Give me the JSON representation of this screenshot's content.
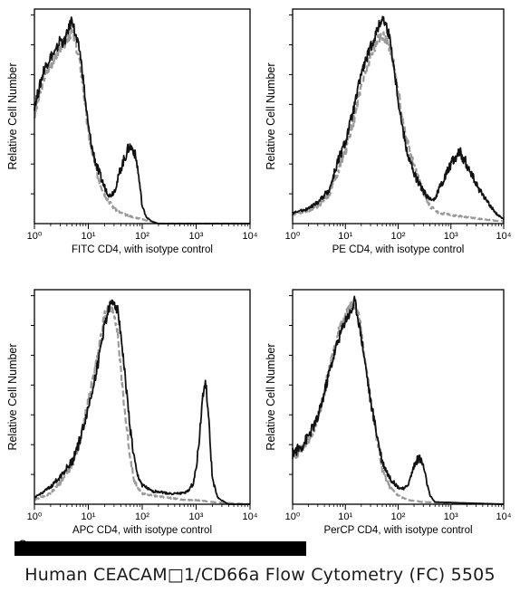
{
  "chart_data": [
    {
      "type": "histogram",
      "xlabel": "FITC  CD4,  with isotype control",
      "ylabel": "Relative Cell Number",
      "x_scale": "log",
      "xlim": [
        1,
        10000
      ],
      "x_ticks": [
        "10⁰",
        "10¹",
        "10²",
        "10³",
        "10⁴"
      ],
      "series": [
        {
          "style": "solid-black",
          "points": [
            [
              1.0,
              0.55
            ],
            [
              1.2,
              0.62
            ],
            [
              1.5,
              0.72
            ],
            [
              2,
              0.78
            ],
            [
              2.5,
              0.8
            ],
            [
              3,
              0.86
            ],
            [
              3.5,
              0.84
            ],
            [
              4,
              0.88
            ],
            [
              4.5,
              0.92
            ],
            [
              5,
              0.96
            ],
            [
              5.5,
              0.9
            ],
            [
              6,
              0.86
            ],
            [
              7,
              0.8
            ],
            [
              8,
              0.68
            ],
            [
              9,
              0.55
            ],
            [
              10,
              0.45
            ],
            [
              12,
              0.34
            ],
            [
              15,
              0.25
            ],
            [
              20,
              0.17
            ],
            [
              25,
              0.13
            ],
            [
              30,
              0.15
            ],
            [
              35,
              0.2
            ],
            [
              40,
              0.26
            ],
            [
              50,
              0.32
            ],
            [
              55,
              0.35
            ],
            [
              60,
              0.36
            ],
            [
              70,
              0.34
            ],
            [
              80,
              0.28
            ],
            [
              90,
              0.18
            ],
            [
              100,
              0.08
            ],
            [
              120,
              0.03
            ],
            [
              150,
              0.01
            ],
            [
              200,
              0.0
            ]
          ]
        },
        {
          "style": "dashed-gray",
          "points": [
            [
              1.0,
              0.5
            ],
            [
              1.2,
              0.58
            ],
            [
              1.5,
              0.68
            ],
            [
              2,
              0.74
            ],
            [
              2.5,
              0.78
            ],
            [
              3,
              0.82
            ],
            [
              3.5,
              0.83
            ],
            [
              4,
              0.86
            ],
            [
              4.5,
              0.88
            ],
            [
              5,
              0.9
            ],
            [
              5.5,
              0.86
            ],
            [
              6,
              0.82
            ],
            [
              7,
              0.74
            ],
            [
              8,
              0.64
            ],
            [
              9,
              0.52
            ],
            [
              10,
              0.42
            ],
            [
              12,
              0.32
            ],
            [
              15,
              0.22
            ],
            [
              20,
              0.14
            ],
            [
              25,
              0.1
            ],
            [
              30,
              0.07
            ],
            [
              40,
              0.05
            ],
            [
              50,
              0.04
            ],
            [
              70,
              0.03
            ],
            [
              100,
              0.02
            ],
            [
              150,
              0.01
            ],
            [
              200,
              0.0
            ]
          ]
        }
      ]
    },
    {
      "type": "histogram",
      "xlabel": "PE  CD4,  with isotype control",
      "ylabel": "Relative Cell Number",
      "x_scale": "log",
      "xlim": [
        1,
        10000
      ],
      "x_ticks": [
        "10⁰",
        "10¹",
        "10²",
        "10³",
        "10⁴"
      ],
      "series": [
        {
          "style": "solid-black",
          "points": [
            [
              1,
              0.05
            ],
            [
              2,
              0.07
            ],
            [
              3,
              0.1
            ],
            [
              5,
              0.16
            ],
            [
              7,
              0.28
            ],
            [
              10,
              0.38
            ],
            [
              15,
              0.55
            ],
            [
              20,
              0.7
            ],
            [
              30,
              0.82
            ],
            [
              40,
              0.9
            ],
            [
              50,
              0.96
            ],
            [
              60,
              0.92
            ],
            [
              70,
              0.86
            ],
            [
              80,
              0.76
            ],
            [
              100,
              0.58
            ],
            [
              120,
              0.45
            ],
            [
              150,
              0.33
            ],
            [
              200,
              0.23
            ],
            [
              300,
              0.15
            ],
            [
              400,
              0.11
            ],
            [
              500,
              0.12
            ],
            [
              700,
              0.2
            ],
            [
              1000,
              0.28
            ],
            [
              1300,
              0.32
            ],
            [
              1500,
              0.33
            ],
            [
              2000,
              0.28
            ],
            [
              3000,
              0.18
            ],
            [
              5000,
              0.1
            ],
            [
              7000,
              0.05
            ],
            [
              10000,
              0.02
            ]
          ]
        },
        {
          "style": "dashed-gray",
          "points": [
            [
              1,
              0.04
            ],
            [
              2,
              0.06
            ],
            [
              3,
              0.08
            ],
            [
              5,
              0.14
            ],
            [
              7,
              0.24
            ],
            [
              10,
              0.34
            ],
            [
              15,
              0.5
            ],
            [
              20,
              0.65
            ],
            [
              30,
              0.78
            ],
            [
              40,
              0.85
            ],
            [
              50,
              0.88
            ],
            [
              60,
              0.86
            ],
            [
              70,
              0.82
            ],
            [
              80,
              0.76
            ],
            [
              100,
              0.62
            ],
            [
              120,
              0.5
            ],
            [
              150,
              0.38
            ],
            [
              200,
              0.26
            ],
            [
              300,
              0.14
            ],
            [
              400,
              0.08
            ],
            [
              600,
              0.05
            ],
            [
              1000,
              0.04
            ],
            [
              2000,
              0.03
            ],
            [
              4000,
              0.02
            ],
            [
              10000,
              0.01
            ]
          ]
        }
      ]
    },
    {
      "type": "histogram",
      "xlabel": "APC CD4, with isotype control",
      "ylabel": "Relative Cell Number",
      "x_scale": "log",
      "xlim": [
        1,
        10000
      ],
      "x_ticks": [
        "10⁰",
        "10¹",
        "10²",
        "10³",
        "10⁴"
      ],
      "series": [
        {
          "style": "solid-black",
          "points": [
            [
              1,
              0.03
            ],
            [
              2,
              0.08
            ],
            [
              3,
              0.13
            ],
            [
              5,
              0.2
            ],
            [
              7,
              0.3
            ],
            [
              10,
              0.45
            ],
            [
              15,
              0.65
            ],
            [
              20,
              0.84
            ],
            [
              25,
              0.92
            ],
            [
              30,
              0.95
            ],
            [
              35,
              0.9
            ],
            [
              40,
              0.8
            ],
            [
              50,
              0.55
            ],
            [
              60,
              0.35
            ],
            [
              70,
              0.22
            ],
            [
              80,
              0.14
            ],
            [
              100,
              0.09
            ],
            [
              150,
              0.06
            ],
            [
              200,
              0.06
            ],
            [
              300,
              0.05
            ],
            [
              500,
              0.05
            ],
            [
              700,
              0.06
            ],
            [
              900,
              0.1
            ],
            [
              1100,
              0.25
            ],
            [
              1300,
              0.48
            ],
            [
              1500,
              0.58
            ],
            [
              1700,
              0.4
            ],
            [
              2000,
              0.12
            ],
            [
              2500,
              0.03
            ],
            [
              4000,
              0.0
            ],
            [
              10000,
              0.0
            ]
          ]
        },
        {
          "style": "dashed-gray",
          "points": [
            [
              1,
              0.02
            ],
            [
              2,
              0.05
            ],
            [
              3,
              0.1
            ],
            [
              5,
              0.18
            ],
            [
              7,
              0.3
            ],
            [
              10,
              0.48
            ],
            [
              15,
              0.7
            ],
            [
              20,
              0.88
            ],
            [
              25,
              0.93
            ],
            [
              30,
              0.9
            ],
            [
              35,
              0.8
            ],
            [
              40,
              0.62
            ],
            [
              50,
              0.38
            ],
            [
              60,
              0.22
            ],
            [
              70,
              0.12
            ],
            [
              80,
              0.08
            ],
            [
              100,
              0.05
            ],
            [
              150,
              0.04
            ],
            [
              300,
              0.03
            ],
            [
              600,
              0.02
            ],
            [
              1000,
              0.02
            ],
            [
              2000,
              0.01
            ],
            [
              10000,
              0.0
            ]
          ]
        }
      ]
    },
    {
      "type": "histogram",
      "xlabel": "PerCP CD4, with isotype control",
      "ylabel": "Relative Cell Number",
      "x_scale": "log",
      "xlim": [
        1,
        10000
      ],
      "x_ticks": [
        "10⁰",
        "10¹",
        "10²",
        "10³",
        "10⁴"
      ],
      "series": [
        {
          "style": "solid-black",
          "points": [
            [
              1,
              0.24
            ],
            [
              1.5,
              0.27
            ],
            [
              2,
              0.32
            ],
            [
              3,
              0.4
            ],
            [
              4,
              0.52
            ],
            [
              5,
              0.62
            ],
            [
              7,
              0.75
            ],
            [
              10,
              0.86
            ],
            [
              13,
              0.9
            ],
            [
              15,
              0.95
            ],
            [
              18,
              0.85
            ],
            [
              20,
              0.78
            ],
            [
              25,
              0.62
            ],
            [
              30,
              0.48
            ],
            [
              40,
              0.32
            ],
            [
              50,
              0.2
            ],
            [
              70,
              0.12
            ],
            [
              100,
              0.08
            ],
            [
              130,
              0.07
            ],
            [
              160,
              0.1
            ],
            [
              200,
              0.18
            ],
            [
              250,
              0.22
            ],
            [
              300,
              0.18
            ],
            [
              350,
              0.1
            ],
            [
              400,
              0.04
            ],
            [
              500,
              0.01
            ],
            [
              10000,
              0.0
            ]
          ]
        },
        {
          "style": "dashed-gray",
          "points": [
            [
              1,
              0.22
            ],
            [
              1.5,
              0.26
            ],
            [
              2,
              0.3
            ],
            [
              3,
              0.4
            ],
            [
              4,
              0.52
            ],
            [
              5,
              0.64
            ],
            [
              7,
              0.78
            ],
            [
              10,
              0.88
            ],
            [
              13,
              0.92
            ],
            [
              15,
              0.93
            ],
            [
              18,
              0.88
            ],
            [
              20,
              0.8
            ],
            [
              25,
              0.64
            ],
            [
              30,
              0.48
            ],
            [
              40,
              0.3
            ],
            [
              50,
              0.16
            ],
            [
              70,
              0.08
            ],
            [
              100,
              0.04
            ],
            [
              150,
              0.02
            ],
            [
              300,
              0.01
            ],
            [
              10000,
              0.0
            ]
          ]
        }
      ]
    }
  ],
  "watermark": {
    "text": "©"
  },
  "caption": "Human CEACAM□1/CD66a Flow Cytometry (FC) 5505"
}
